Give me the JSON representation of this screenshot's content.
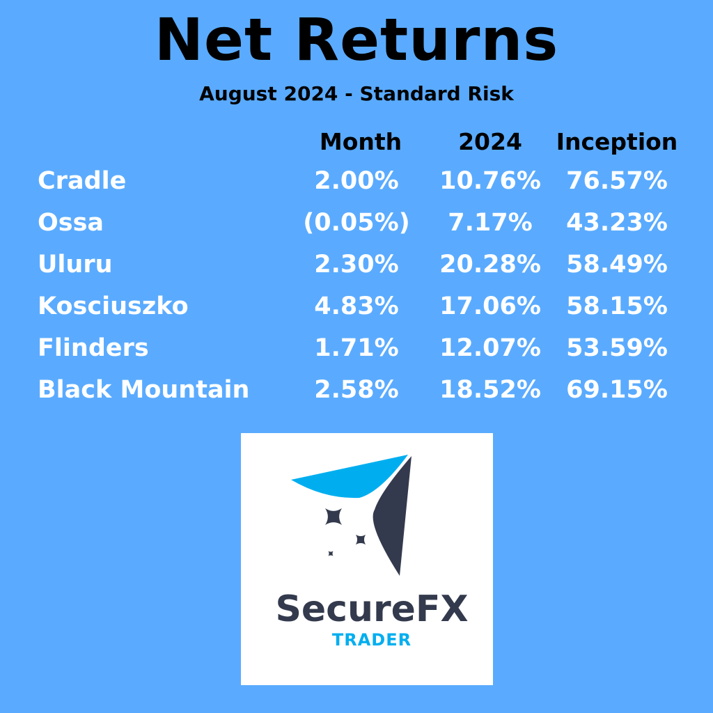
{
  "title": "Net Returns",
  "subtitle": "August 2024  -  Standard Risk",
  "columns": [
    "Month",
    "2024",
    "Inception"
  ],
  "rows": [
    {
      "name": "Cradle",
      "month": "2.00%",
      "ytd": "10.76%",
      "inception": "76.57%"
    },
    {
      "name": "Ossa",
      "month": "(0.05%)",
      "ytd": "7.17%",
      "inception": "43.23%"
    },
    {
      "name": "Uluru",
      "month": "2.30%",
      "ytd": "20.28%",
      "inception": "58.49%"
    },
    {
      "name": "Kosciuszko",
      "month": "4.83%",
      "ytd": "17.06%",
      "inception": "58.15%"
    },
    {
      "name": "Flinders",
      "month": "1.71%",
      "ytd": "12.07%",
      "inception": "53.59%"
    },
    {
      "name": "Black Mountain",
      "month": "2.58%",
      "ytd": "18.52%",
      "inception": "69.15%"
    }
  ],
  "logo": {
    "brand": "SecureFX",
    "tagline": "TRADER",
    "dark_color": "#333a4d",
    "accent_color": "#00aeef"
  },
  "colors": {
    "background": "#5aabff",
    "row_text": "#ffffff",
    "heading_text": "#000000"
  }
}
